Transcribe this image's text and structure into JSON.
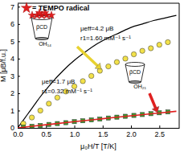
{
  "chart_data": {
    "type": "scatter",
    "x_label": "μ₀H/T [T/K]",
    "y_label": "M [μB/f.u.]",
    "xlim": [
      0,
      2.85
    ],
    "ylim": [
      0,
      7.2
    ],
    "xticks": [
      {
        "value": 0,
        "label": "0.0"
      },
      {
        "value": 0.5,
        "label": "0.5"
      },
      {
        "value": 1,
        "label": "1.0"
      },
      {
        "value": 1.5,
        "label": "1.5"
      },
      {
        "value": 2,
        "label": "2.0"
      },
      {
        "value": 2.5,
        "label": "2.5"
      }
    ],
    "yticks": [
      0,
      1,
      2,
      3,
      4,
      5,
      6,
      7
    ],
    "grid": false,
    "series": [
      {
        "type": "line",
        "color": "#000000",
        "line_style": "solid",
        "x": [
          0,
          0.1,
          0.2,
          0.3,
          0.4,
          0.5,
          0.6,
          0.8,
          1.0,
          1.2,
          1.4,
          1.6,
          1.8,
          2.0,
          2.2,
          2.4,
          2.6,
          2.8
        ],
        "values": [
          0,
          0.45,
          0.9,
          1.35,
          1.8,
          2.2,
          2.6,
          3.3,
          3.9,
          4.4,
          4.85,
          5.2,
          5.5,
          5.8,
          6.0,
          6.2,
          6.35,
          6.5
        ]
      },
      {
        "type": "scatter",
        "color": "#f2e14a",
        "marker": "circle",
        "x": [
          0.1,
          0.25,
          0.4,
          0.55,
          0.7,
          0.85,
          1.0,
          1.15,
          1.3,
          1.45,
          1.6,
          1.75,
          1.9,
          2.05,
          2.2,
          2.35,
          2.5,
          2.65
        ],
        "values": [
          0.25,
          0.6,
          1.0,
          1.4,
          1.75,
          2.1,
          2.4,
          2.7,
          3.0,
          3.3,
          3.55,
          3.8,
          4.0,
          4.25,
          4.45,
          4.6,
          4.8,
          4.95
        ]
      },
      {
        "type": "scatter",
        "color": "#3c9a2e",
        "marker": "square",
        "x": [
          0.1,
          0.25,
          0.4,
          0.55,
          0.7,
          0.85,
          1.0,
          1.15,
          1.3,
          1.45,
          1.6,
          1.75,
          1.9,
          2.05,
          2.2,
          2.35,
          2.5,
          2.65
        ],
        "values": [
          0.04,
          0.09,
          0.14,
          0.2,
          0.25,
          0.3,
          0.36,
          0.41,
          0.46,
          0.51,
          0.57,
          0.62,
          0.67,
          0.72,
          0.77,
          0.82,
          0.87,
          0.92
        ]
      },
      {
        "type": "line",
        "color": "#e02020",
        "line_style": "solid",
        "x": [
          0,
          0.5,
          1.0,
          1.5,
          2.0,
          2.5,
          2.8
        ],
        "values": [
          0,
          0.18,
          0.36,
          0.53,
          0.7,
          0.86,
          0.96
        ]
      }
    ],
    "annotations": [
      "= TEMPO radical",
      "μeff=4.2 μB",
      "r1=1.60 mM⁻¹ s⁻¹",
      "μeff=1.7 μB",
      "r1=0.32 mM⁻¹ s⁻¹",
      "βCD",
      "OH₁₄",
      "βCD",
      "OH₂₁"
    ]
  }
}
